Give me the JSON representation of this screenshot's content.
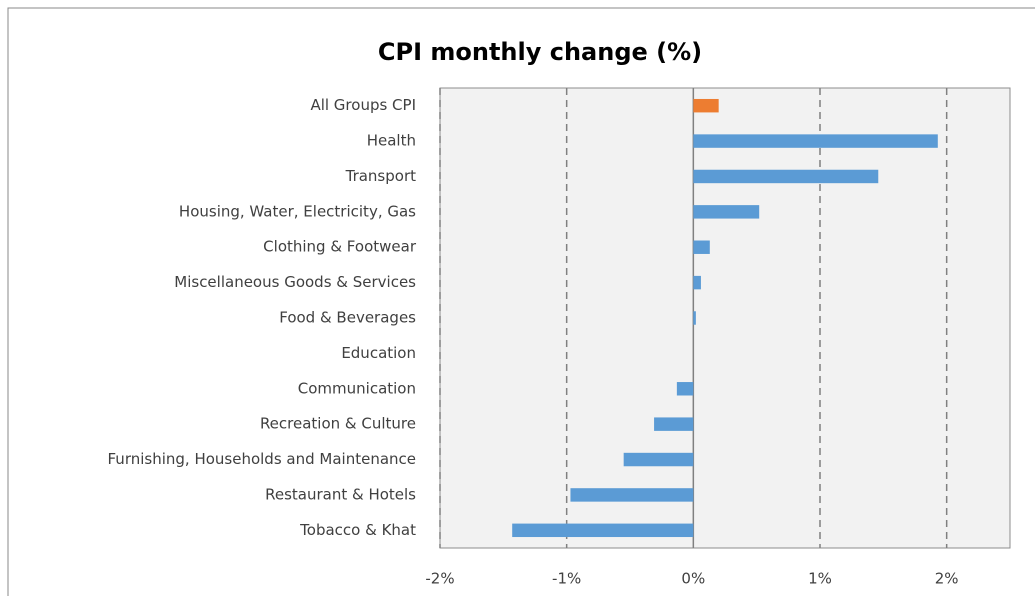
{
  "chart_data": {
    "type": "barh",
    "title": "CPI monthly change (%)",
    "categories": [
      "All Groups CPI",
      "Health",
      "Transport",
      "Housing, Water, Electricity, Gas",
      "Clothing & Footwear",
      "Miscellaneous Goods & Services",
      "Food & Beverages",
      "Education",
      "Communication",
      "Recreation & Culture",
      "Furnishing, Households and Maintenance",
      "Restaurant & Hotels",
      "Tobacco & Khat"
    ],
    "values": [
      0.2,
      1.93,
      1.46,
      0.52,
      0.13,
      0.06,
      0.02,
      0,
      -0.13,
      -0.31,
      -0.55,
      -0.97,
      -1.43
    ],
    "colors": [
      "#ed7d31",
      "#5b9bd5",
      "#5b9bd5",
      "#5b9bd5",
      "#5b9bd5",
      "#5b9bd5",
      "#5b9bd5",
      "#5b9bd5",
      "#5b9bd5",
      "#5b9bd5",
      "#5b9bd5",
      "#5b9bd5",
      "#5b9bd5"
    ],
    "xlim": [
      -2,
      2.5
    ],
    "xticks": [
      {
        "value": -2,
        "label": "-2%"
      },
      {
        "value": -1,
        "label": "-1%"
      },
      {
        "value": 0,
        "label": "0%"
      },
      {
        "value": 1,
        "label": "1%"
      },
      {
        "value": 2,
        "label": "2%"
      }
    ],
    "grid": true
  }
}
